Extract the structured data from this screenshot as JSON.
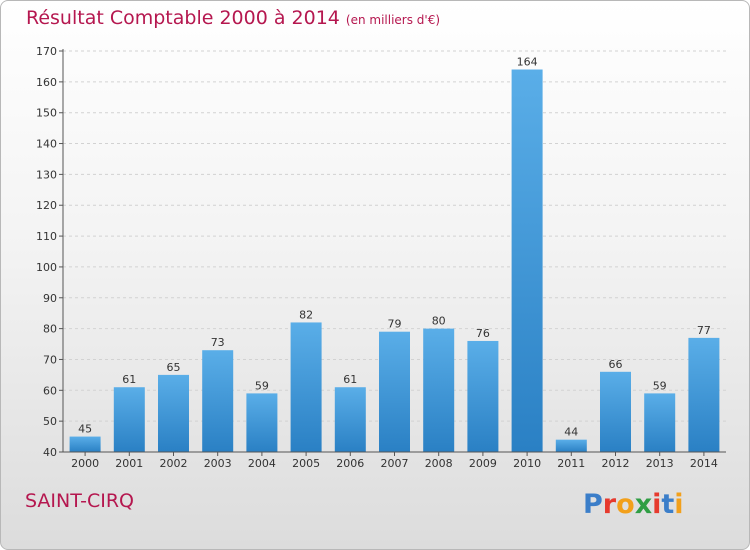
{
  "title": "Résultat Comptable 2000 à 2014",
  "subtitle": "(en milliers d'€)",
  "city": "SAINT-CIRQ",
  "logo": {
    "letters": [
      "P",
      "r",
      "o",
      "x",
      "i",
      "t",
      "i"
    ]
  },
  "colors": {
    "title": "#b5174f",
    "bar_top": "#5aaee8",
    "bar_bottom": "#2a80c4",
    "logo": [
      "#3b7ec9",
      "#e63a2e",
      "#f2a01b",
      "#2f9e44",
      "#e63a2e",
      "#3b7ec9",
      "#f2a01b"
    ]
  },
  "chart_data": {
    "type": "bar",
    "categories": [
      "2000",
      "2001",
      "2002",
      "2003",
      "2004",
      "2005",
      "2006",
      "2007",
      "2008",
      "2009",
      "2010",
      "2011",
      "2012",
      "2013",
      "2014"
    ],
    "values": [
      45,
      61,
      65,
      73,
      59,
      82,
      61,
      79,
      80,
      76,
      164,
      44,
      66,
      59,
      77
    ],
    "ylim": [
      40,
      170
    ],
    "yticks": [
      40,
      50,
      60,
      70,
      80,
      90,
      100,
      110,
      120,
      130,
      140,
      150,
      160,
      170
    ],
    "grid": true,
    "xlabel": "",
    "ylabel": ""
  }
}
